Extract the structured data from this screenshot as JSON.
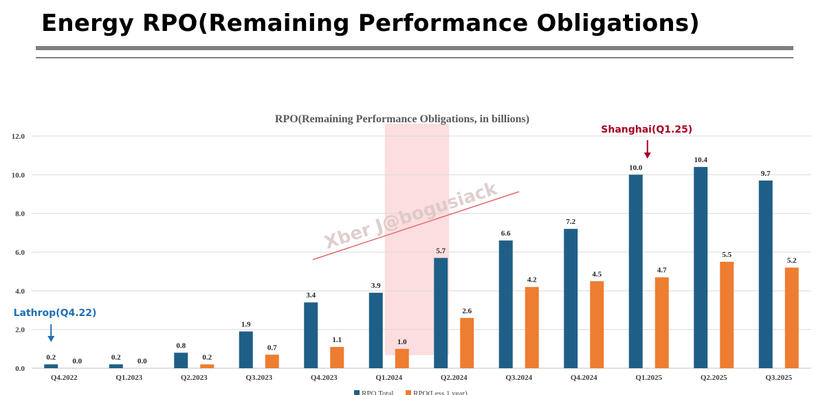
{
  "page": {
    "title": "Energy RPO(Remaining Performance Obligations)"
  },
  "chart_data": {
    "type": "bar",
    "title": "RPO(Remaining Performance Obligations, in billions)",
    "categories": [
      "Q4.2022",
      "Q1.2023",
      "Q2.2023",
      "Q3.2023",
      "Q4.2023",
      "Q1.2024",
      "Q2.2024",
      "Q3.2024",
      "Q4.2024",
      "Q1.2025",
      "Q2.2025",
      "Q3.2025"
    ],
    "series": [
      {
        "name": "RPO Total",
        "color": "#1f5f87",
        "values": [
          0.2,
          0.2,
          0.8,
          1.9,
          3.4,
          3.9,
          5.7,
          6.6,
          7.2,
          10.0,
          10.4,
          9.7
        ],
        "labels": [
          "0.2",
          "0.2",
          "0.8",
          "1.9",
          "3.4",
          "3.9",
          "5.7",
          "6.6",
          "7.2",
          "10.0",
          "10.4",
          "9.7"
        ]
      },
      {
        "name": "RPO(Less 1 year)",
        "color": "#ed7d31",
        "values": [
          0.0,
          0.0,
          0.2,
          0.7,
          1.1,
          1.0,
          2.6,
          4.2,
          4.5,
          4.7,
          5.5,
          5.2
        ],
        "labels": [
          "0.0",
          "0.0",
          "0.2",
          "0.7",
          "1.1",
          "1.0",
          "2.6",
          "4.2",
          "4.5",
          "4.7",
          "5.5",
          "5.2"
        ]
      }
    ],
    "ylim": [
      0,
      12
    ],
    "yticks": [
      "0.0",
      "2.0",
      "4.0",
      "6.0",
      "8.0",
      "10.0",
      "12.0"
    ],
    "xlabel": "",
    "ylabel": "",
    "grid": true,
    "legend_position": "bottom",
    "highlight_band": {
      "from_category": "Q1.2024",
      "to_category": "Q2.2024",
      "color": "#fbd3d6"
    },
    "annotations": [
      {
        "text": "Shanghai(Q1.25)",
        "category": "Q1.2025",
        "color": "#a50021"
      },
      {
        "text": "Lathrop(Q4.22)",
        "category": "Q4.2022",
        "color": "#1f6fb5"
      }
    ],
    "watermark": "Xber J@bogusiack"
  }
}
